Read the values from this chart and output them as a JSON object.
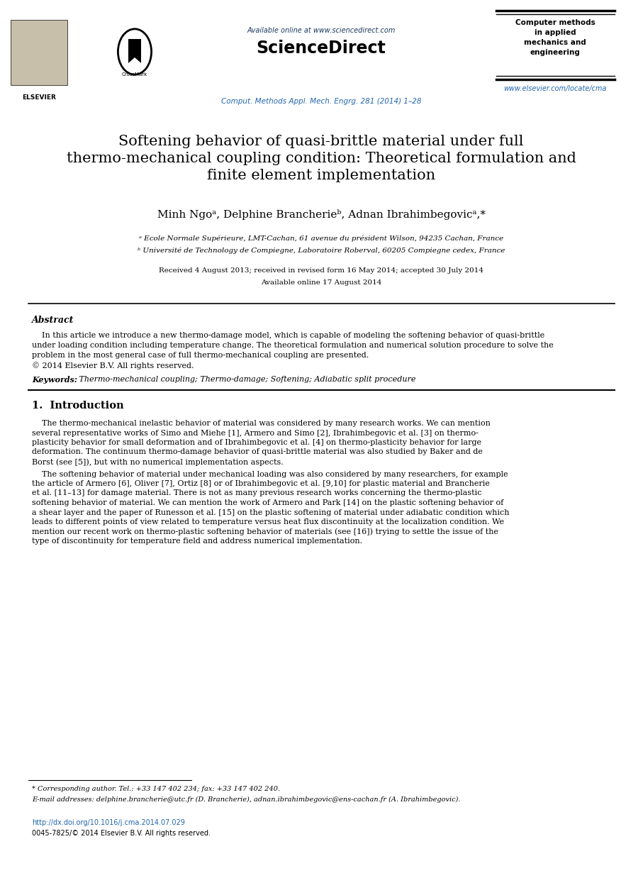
{
  "bg_color": "#ffffff",
  "header": {
    "available_online": "Available online at www.sciencedirect.com",
    "sciencedirect": "ScienceDirect",
    "journal_ref": "Comput. Methods Appl. Mech. Engrg. 281 (2014) 1–28",
    "journal_name": "Computer methods\nin applied\nmechanics and\nengineering",
    "journal_url": "www.elsevier.com/locate/cma",
    "elsevier": "ELSEVIER"
  },
  "title_line1": "Softening behavior of quasi-brittle material under full",
  "title_line2": "thermo-mechanical coupling condition: Theoretical formulation and",
  "title_line3": "finite element implementation",
  "authors": "Minh Ngoᵃ, Delphine Brancherieᵇ, Adnan Ibrahimbegovicᵃ,*",
  "affil_a": "ᵃ Ecole Normale Supérieure, LMT-Cachan, 61 avenue du président Wilson, 94235 Cachan, France",
  "affil_b": "ᵇ Université de Technology de Compiegne, Laboratoire Roberval, 60205 Compiegne cedex, France",
  "dates": "Received 4 August 2013; received in revised form 16 May 2014; accepted 30 July 2014",
  "available": "Available online 17 August 2014",
  "abstract_title": "Abstract",
  "abstract_line1": "    In this article we introduce a new thermo-damage model, which is capable of modeling the softening behavior of quasi-brittle",
  "abstract_line2": "under loading condition including temperature change. The theoretical formulation and numerical solution procedure to solve the",
  "abstract_line3": "problem in the most general case of full thermo-mechanical coupling are presented.",
  "abstract_line4": "© 2014 Elsevier B.V. All rights reserved.",
  "keywords_label": "Keywords:",
  "keywords_text": " Thermo-mechanical coupling; Thermo-damage; Softening; Adiabatic split procedure",
  "section1_title": "1.  Introduction",
  "intro_p1_lines": [
    "    The thermo-mechanical inelastic behavior of material was considered by many research works. We can mention",
    "several representative works of Simo and Miehe [1], Armero and Simo [2], Ibrahimbegovic et al. [3] on thermo-",
    "plasticity behavior for small deformation and of Ibrahimbegovic et al. [4] on thermo-plasticity behavior for large",
    "deformation. The continuum thermo-damage behavior of quasi-brittle material was also studied by Baker and de",
    "Borst (see [5]), but with no numerical implementation aspects."
  ],
  "intro_p2_lines": [
    "    The softening behavior of material under mechanical loading was also considered by many researchers, for example",
    "the article of Armero [6], Oliver [7], Ortiz [8] or of Ibrahimbegovic et al. [9,10] for plastic material and Brancherie",
    "et al. [11–13] for damage material. There is not as many previous research works concerning the thermo-plastic",
    "softening behavior of material. We can mention the work of Armero and Park [14] on the plastic softening behavior of",
    "a shear layer and the paper of Runesson et al. [15] on the plastic softening of material under adiabatic condition which",
    "leads to different points of view related to temperature versus heat flux discontinuity at the localization condition. We",
    "mention our recent work on thermo-plastic softening behavior of materials (see [16]) trying to settle the issue of the",
    "type of discontinuity for temperature field and address numerical implementation."
  ],
  "footnote_star": "* Corresponding author. Tel.: +33 147 402 234; fax: +33 147 402 240.",
  "footnote_email": "E-mail addresses: delphine.brancherie@utc.fr (D. Brancherie), adnan.ibrahimbegovic@ens-cachan.fr (A. Ibrahimbegovic).",
  "doi": "http://dx.doi.org/10.1016/j.cma.2014.07.029",
  "issn": "0045-7825/© 2014 Elsevier B.V. All rights reserved.",
  "colors": {
    "black": "#000000",
    "link_blue": "#2166ac",
    "dark_navy": "#1a3a5c",
    "sd_blue": "#003399"
  }
}
